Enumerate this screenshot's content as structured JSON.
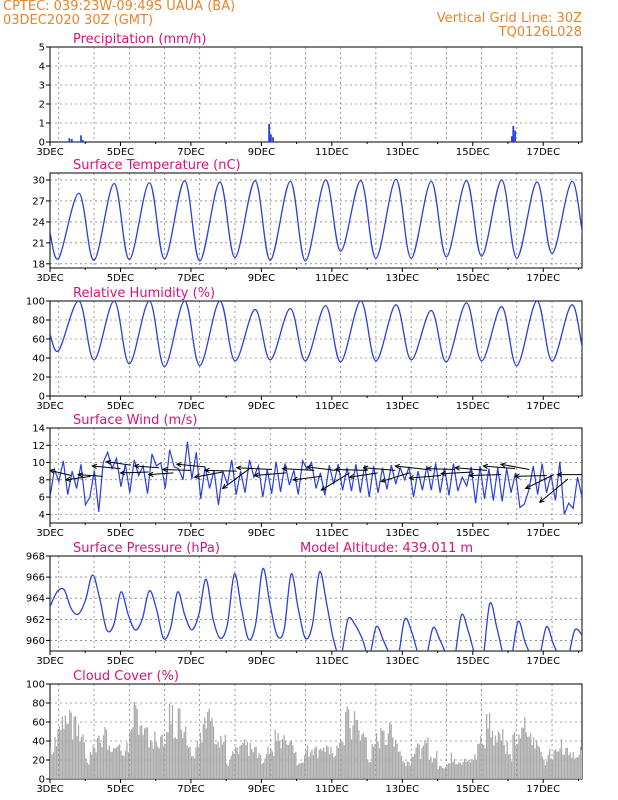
{
  "header": {
    "line1": "CPTEC:   039:23W-09:49S   UAUA (BA)",
    "line2": "03DEC2020 30Z (GMT)",
    "right1": "Vertical Grid Line: 30Z",
    "right2": "TQ0126L028"
  },
  "colors": {
    "header": "#e8842a",
    "title": "#d8127a",
    "line": "#2a3fe0",
    "bar": "#aaaaaa",
    "arrow": "#000000"
  },
  "x_ticks": [
    "3DEC",
    "5DEC",
    "7DEC",
    "9DEC",
    "11DEC",
    "13DEC",
    "15DEC",
    "17DEC"
  ],
  "chart_data": [
    {
      "type": "bar",
      "title": "Precipitation (mm/h)",
      "ylim": [
        0,
        5
      ],
      "yticks": [
        "0",
        "1",
        "2",
        "3",
        "4",
        "5"
      ],
      "grid": true,
      "x_range_days": [
        3,
        18.1
      ],
      "events": [
        {
          "x": 3.55,
          "y": 0.2
        },
        {
          "x": 3.62,
          "y": 0.15
        },
        {
          "x": 3.88,
          "y": 0.35
        },
        {
          "x": 3.93,
          "y": 0.1
        },
        {
          "x": 9.22,
          "y": 0.95
        },
        {
          "x": 9.27,
          "y": 0.4
        },
        {
          "x": 9.33,
          "y": 0.25
        },
        {
          "x": 16.15,
          "y": 0.85
        },
        {
          "x": 16.2,
          "y": 0.6
        },
        {
          "x": 16.11,
          "y": 0.3
        }
      ]
    },
    {
      "type": "line",
      "title": "Surface Temperature (nC)",
      "ylim": [
        17.4,
        31
      ],
      "yticks": [
        "18",
        "21",
        "24",
        "27",
        "30"
      ],
      "grid": true,
      "x_range_days": [
        3,
        18.1
      ],
      "daily_max": [
        28.1,
        29.5,
        29.6,
        29.9,
        29.7,
        29.9,
        29.8,
        30.0,
        29.9,
        30.1,
        29.8,
        29.9,
        30.0,
        29.7,
        29.8,
        30.2
      ],
      "daily_min": [
        18.8,
        18.5,
        18.6,
        18.7,
        18.4,
        18.9,
        18.5,
        18.4,
        19.8,
        18.8,
        18.8,
        19.0,
        19.1,
        18.8,
        19.5,
        20.3
      ],
      "start_value": 22.5,
      "end_value": 27.5
    },
    {
      "type": "line",
      "title": "Relative Humidity (%)",
      "ylim": [
        0,
        100
      ],
      "yticks": [
        "0",
        "20",
        "40",
        "60",
        "80",
        "100"
      ],
      "grid": true,
      "x_range_days": [
        3,
        18.1
      ],
      "daily_max": [
        100,
        100,
        100,
        100,
        100,
        91,
        92,
        95,
        100,
        96,
        90,
        98,
        94,
        100,
        96,
        99
      ],
      "daily_min": [
        48,
        38,
        34,
        31,
        32,
        37,
        38,
        37,
        36,
        37,
        38,
        36,
        37,
        32,
        37,
        37
      ],
      "start_value": 65,
      "end_value": 45
    },
    {
      "type": "line",
      "title": "Surface Wind (m/s)",
      "ylim": [
        3,
        14
      ],
      "yticks": [
        "4",
        "6",
        "8",
        "10",
        "12",
        "14"
      ],
      "grid": true,
      "x_range_days": [
        3,
        18.1
      ],
      "speed": [
        6.0,
        9.2,
        7.8,
        10.2,
        6.3,
        9.0,
        7.0,
        9.8,
        5.1,
        6.0,
        9.1,
        4.3,
        10.0,
        11.2,
        9.3,
        10.5,
        7.2,
        9.8,
        6.5,
        10.3,
        8.5,
        9.6,
        6.4,
        11.0,
        9.6,
        10.0,
        7.0,
        11.5,
        9.5,
        9.3,
        8.0,
        12.4,
        8.1,
        11.2,
        5.8,
        9.5,
        7.0,
        9.1,
        5.1,
        9.0,
        7.5,
        10.3,
        6.3,
        9.0,
        6.5,
        10.3,
        8.3,
        9.6,
        6.0,
        9.2,
        6.4,
        10.1,
        6.6,
        9.9,
        7.4,
        9.1,
        6.3,
        10.2,
        9.2,
        10.0,
        7.0,
        8.8,
        6.2,
        9.7,
        7.5,
        9.8,
        6.8,
        9.4,
        6.7,
        9.8,
        6.5,
        9.7,
        6.0,
        9.6,
        6.5,
        9.4,
        6.9,
        9.7,
        7.5,
        9.4,
        8.0,
        9.5,
        6.0,
        9.0,
        6.8,
        9.6,
        6.8,
        9.9,
        6.5,
        9.4,
        6.2,
        9.9,
        6.7,
        8.3,
        7.3,
        9.5,
        5.3,
        9.6,
        5.8,
        9.3,
        5.6,
        9.4,
        5.5,
        9.3,
        6.5,
        8.8,
        4.8,
        5.2,
        6.8,
        9.6,
        6.3,
        9.9,
        6.5,
        8.6,
        5.6,
        10.1,
        4.0,
        5.3,
        4.7,
        8.3,
        6.0
      ],
      "arrows": [
        {
          "x": 3.0,
          "y": 9.1,
          "dx": 0.6,
          "dy": -0.6
        },
        {
          "x": 3.45,
          "y": 8.0,
          "dx": 0.7,
          "dy": 0.4
        },
        {
          "x": 3.8,
          "y": 8.6,
          "dx": 0.7,
          "dy": -0.2
        },
        {
          "x": 4.2,
          "y": 9.6,
          "dx": 0.8,
          "dy": -0.3
        },
        {
          "x": 4.6,
          "y": 10.1,
          "dx": 0.7,
          "dy": -0.4
        },
        {
          "x": 5.0,
          "y": 8.8,
          "dx": 0.8,
          "dy": 0.1
        },
        {
          "x": 5.4,
          "y": 9.6,
          "dx": 0.7,
          "dy": -0.2
        },
        {
          "x": 5.8,
          "y": 8.6,
          "dx": 0.7,
          "dy": 0.2
        },
        {
          "x": 6.2,
          "y": 9.2,
          "dx": 0.8,
          "dy": -0.1
        },
        {
          "x": 6.6,
          "y": 9.8,
          "dx": 0.8,
          "dy": -0.3
        },
        {
          "x": 7.1,
          "y": 8.3,
          "dx": 0.8,
          "dy": 0.6
        },
        {
          "x": 7.4,
          "y": 9.1,
          "dx": 0.9,
          "dy": -0.1
        },
        {
          "x": 7.9,
          "y": 7.0,
          "dx": 0.8,
          "dy": 2.4
        },
        {
          "x": 8.3,
          "y": 9.4,
          "dx": 1.0,
          "dy": -0.2
        },
        {
          "x": 8.8,
          "y": 8.5,
          "dx": 0.9,
          "dy": 0.3
        },
        {
          "x": 9.6,
          "y": 9.3,
          "dx": 0.9,
          "dy": -0.2
        },
        {
          "x": 9.9,
          "y": 8.0,
          "dx": 0.8,
          "dy": 0.4
        },
        {
          "x": 10.3,
          "y": 9.5,
          "dx": 0.8,
          "dy": -0.4
        },
        {
          "x": 10.7,
          "y": 6.8,
          "dx": 0.8,
          "dy": 2.0
        },
        {
          "x": 11.1,
          "y": 9.2,
          "dx": 0.9,
          "dy": -0.1
        },
        {
          "x": 11.5,
          "y": 8.3,
          "dx": 0.8,
          "dy": 0.5
        },
        {
          "x": 11.9,
          "y": 9.4,
          "dx": 0.9,
          "dy": -0.3
        },
        {
          "x": 12.4,
          "y": 7.8,
          "dx": 0.8,
          "dy": 1.0
        },
        {
          "x": 12.8,
          "y": 9.6,
          "dx": 0.9,
          "dy": -0.4
        },
        {
          "x": 13.2,
          "y": 8.2,
          "dx": 0.9,
          "dy": 0.3
        },
        {
          "x": 13.7,
          "y": 9.3,
          "dx": 0.8,
          "dy": -0.1
        },
        {
          "x": 14.1,
          "y": 8.7,
          "dx": 0.9,
          "dy": 0.2
        },
        {
          "x": 14.5,
          "y": 9.4,
          "dx": 0.9,
          "dy": -0.3
        },
        {
          "x": 14.9,
          "y": 8.5,
          "dx": 0.9,
          "dy": 0.1
        },
        {
          "x": 15.3,
          "y": 9.6,
          "dx": 0.9,
          "dy": -0.3
        },
        {
          "x": 15.8,
          "y": 9.8,
          "dx": 0.8,
          "dy": -0.6
        },
        {
          "x": 16.2,
          "y": 8.4,
          "dx": 0.9,
          "dy": 0.1
        },
        {
          "x": 16.5,
          "y": 7.0,
          "dx": 0.8,
          "dy": 1.6
        },
        {
          "x": 16.9,
          "y": 5.4,
          "dx": 0.8,
          "dy": 2.7
        },
        {
          "x": 17.4,
          "y": 8.6,
          "dx": 0.7,
          "dy": 0.0
        }
      ]
    },
    {
      "type": "line",
      "title": "Surface Pressure (hPa)",
      "ylim": [
        959,
        968
      ],
      "yticks": [
        "960",
        "962",
        "964",
        "966",
        "968"
      ],
      "grid": true,
      "x_range_days": [
        3,
        18.1
      ],
      "values": [
        963.2,
        964.6,
        964.8,
        963.0,
        962.5,
        963.8,
        966.2,
        964.0,
        961.0,
        961.5,
        964.6,
        962.5,
        961.0,
        962.0,
        964.7,
        963.0,
        960.2,
        961.2,
        964.6,
        962.4,
        961.0,
        962.5,
        965.8,
        962.0,
        960.2,
        961.5,
        966.3,
        963.0,
        960.1,
        961.6,
        966.8,
        963.5,
        960.5,
        961.0,
        966.3,
        963.0,
        960.2,
        961.5,
        966.5,
        963.5,
        960.0,
        958.5,
        962.0,
        961.5,
        960.2,
        958.5,
        961.3,
        960.0,
        958.6,
        958.2,
        962.0,
        960.8,
        958.6,
        958.4,
        961.2,
        960.0,
        958.6,
        958.3,
        962.4,
        960.8,
        958.5,
        958.2,
        963.5,
        961.2,
        958.5,
        958.3,
        961.8,
        959.8,
        958.4,
        958.5,
        961.3,
        959.6,
        958.3,
        958.4,
        961.0,
        960.5
      ]
    },
    {
      "type": "bar",
      "title": "Cloud Cover (%)",
      "ylim": [
        0,
        100
      ],
      "yticks": [
        "0",
        "20",
        "40",
        "60",
        "80",
        "100"
      ],
      "grid": true,
      "x_range_days": [
        3,
        18.1
      ],
      "daily_peak": [
        100,
        72,
        93,
        99,
        98,
        50,
        68,
        55,
        90,
        80,
        50,
        35,
        90,
        78,
        57,
        88
      ],
      "daily_low": [
        18,
        8,
        10,
        20,
        8,
        10,
        10,
        8,
        10,
        6,
        10,
        8,
        6,
        12,
        10,
        8
      ]
    }
  ],
  "panels": [
    {
      "title": "Precipitation (mm/h)"
    },
    {
      "title": "Surface Temperature (nC)"
    },
    {
      "title": "Relative Humidity (%)"
    },
    {
      "title": "Surface Wind (m/s)"
    },
    {
      "title": "Surface Pressure (hPa)",
      "extra": "Model Altitude:  439.011  m"
    },
    {
      "title": "Cloud Cover (%)"
    }
  ]
}
